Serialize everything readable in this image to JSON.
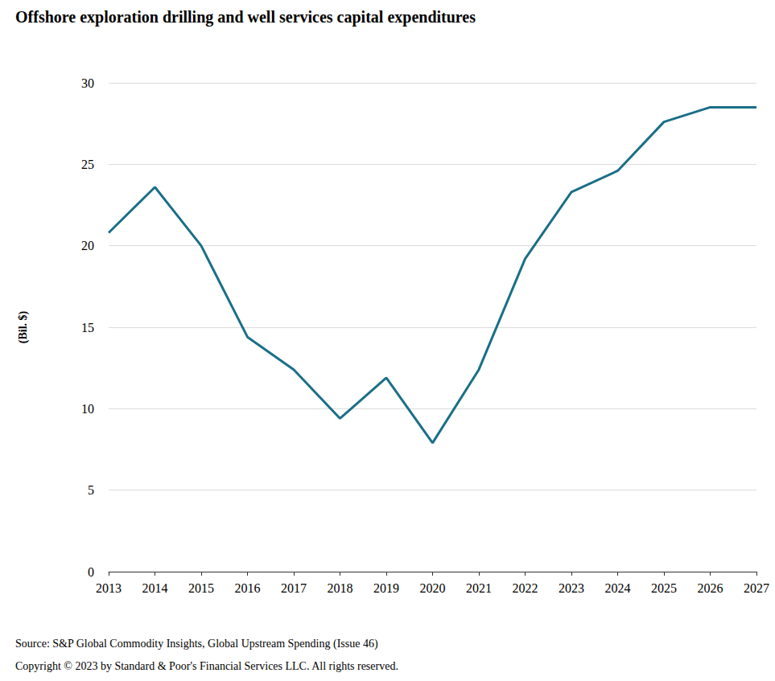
{
  "chart_data": {
    "type": "line",
    "title": "Offshore exploration drilling and well services capital expenditures",
    "y_label": "(Bil. $)",
    "source": "Source: S&P Global Commodity Insights, Global Upstream Spending (Issue 46)",
    "copyright": "Copyright © 2023 by Standard & Poor's Financial Services LLC. All rights reserved.",
    "categories": [
      "2013",
      "2014",
      "2015",
      "2016",
      "2017",
      "2018",
      "2019",
      "2020",
      "2021",
      "2022",
      "2023",
      "2024",
      "2025",
      "2026",
      "2027"
    ],
    "values": [
      20.8,
      23.6,
      20.0,
      14.4,
      12.4,
      9.4,
      11.9,
      7.9,
      12.4,
      19.2,
      23.3,
      24.6,
      27.6,
      28.5,
      28.5
    ],
    "color": "#1a6f87",
    "ylim": [
      0,
      30
    ],
    "yticks": [
      0,
      5,
      10,
      15,
      20,
      25,
      30
    ],
    "grid": true
  }
}
